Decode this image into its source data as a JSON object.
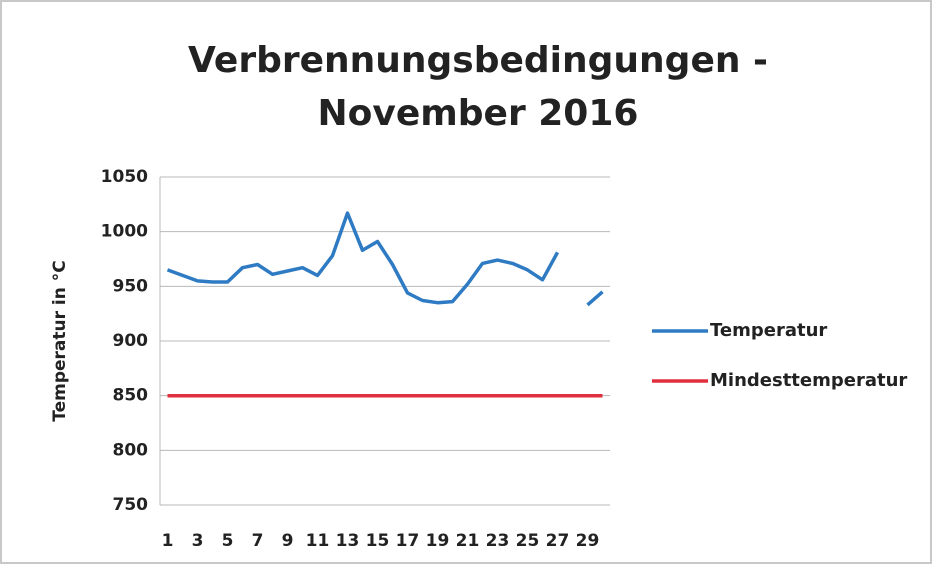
{
  "chart_data": {
    "type": "line",
    "title": [
      "Verbrennungsbedingungen -",
      "November 2016"
    ],
    "y_label": "Temperatur in °C",
    "categories": [
      "1",
      null,
      "3",
      null,
      "5",
      null,
      "7",
      null,
      "9",
      null,
      "11",
      null,
      "13",
      null,
      "15",
      null,
      "17",
      null,
      "19",
      null,
      "21",
      null,
      "23",
      null,
      "25",
      null,
      "27",
      null,
      "29",
      null
    ],
    "series": [
      {
        "name": "Temperatur",
        "color": "#2e7bc4",
        "values": [
          965,
          960,
          955,
          954,
          954,
          967,
          970,
          961,
          964,
          967,
          960,
          978,
          1017,
          983,
          991,
          970,
          944,
          937,
          935,
          936,
          952,
          971,
          974,
          971,
          965,
          956,
          981,
          null,
          933,
          945
        ]
      },
      {
        "name": "Mindesttemperatur",
        "color": "#e0303f",
        "values": [
          850,
          850,
          850,
          850,
          850,
          850,
          850,
          850,
          850,
          850,
          850,
          850,
          850,
          850,
          850,
          850,
          850,
          850,
          850,
          850,
          850,
          850,
          850,
          850,
          850,
          850,
          850,
          850,
          850,
          850
        ]
      }
    ],
    "ylim": [
      750,
      1050
    ],
    "yticks": [
      750,
      800,
      850,
      900,
      950,
      1000,
      1050
    ],
    "grid": true,
    "legend": "right"
  }
}
